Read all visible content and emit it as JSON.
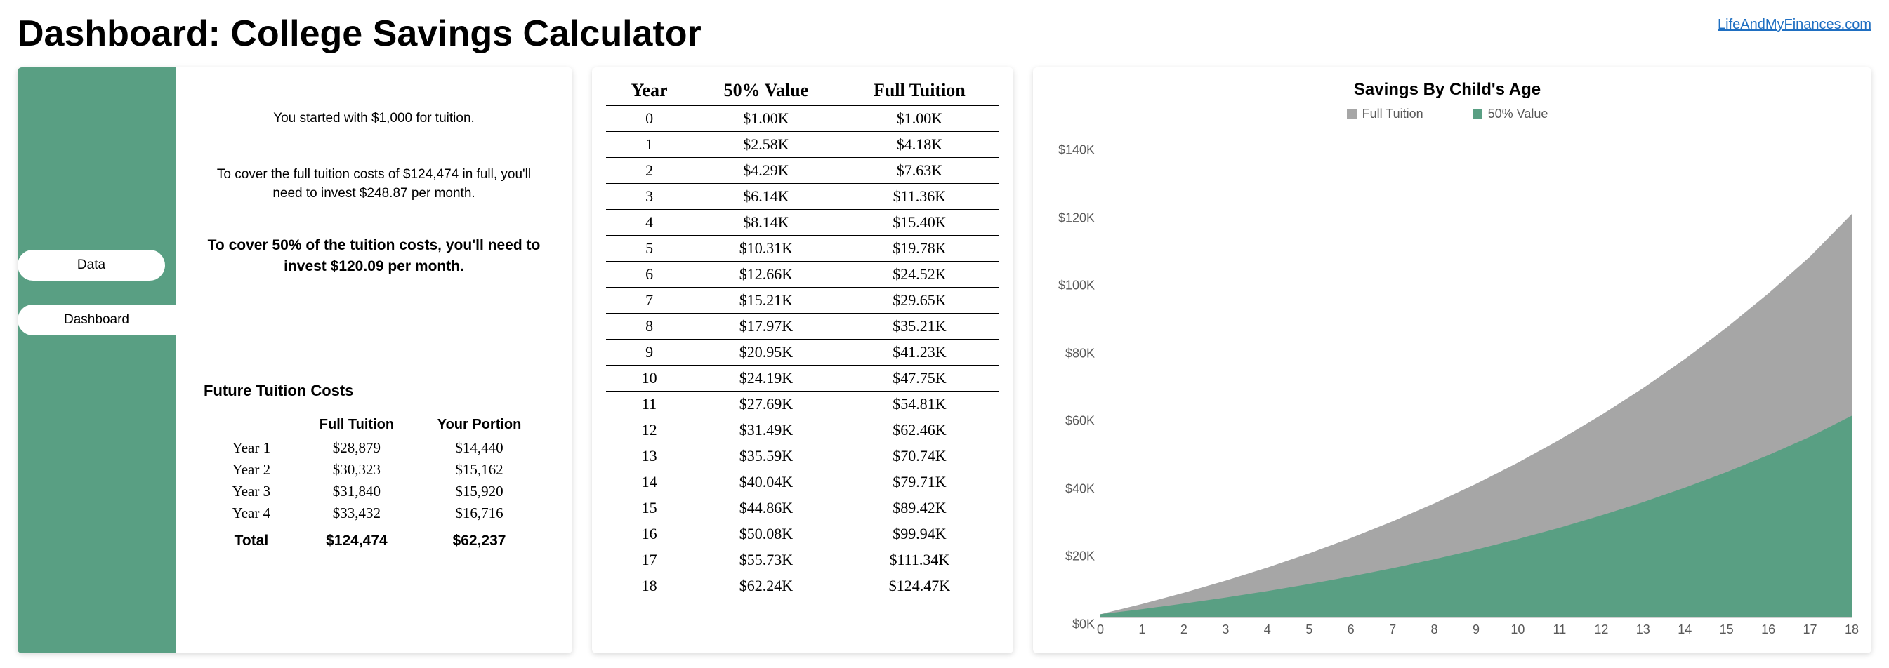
{
  "header": {
    "title": "Dashboard: College Savings Calculator",
    "site_link": "LifeAndMyFinances.com"
  },
  "sidebar": {
    "accent_color": "#599f83",
    "items": [
      {
        "label": "Data",
        "active": false
      },
      {
        "label": "Dashboard",
        "active": true
      }
    ]
  },
  "summary": {
    "line1": "You started with $1,000 for tuition.",
    "line2": "To cover the full tuition costs of $124,474 in full, you'll need to invest $248.87 per month.",
    "bold": "To cover 50% of the tuition costs, you'll need to invest $120.09 per month."
  },
  "future": {
    "title": "Future Tuition Costs",
    "columns": [
      "",
      "Full Tuition",
      "Your Portion"
    ],
    "rows": [
      [
        "Year 1",
        "$28,879",
        "$14,440"
      ],
      [
        "Year 2",
        "$30,323",
        "$15,162"
      ],
      [
        "Year 3",
        "$31,840",
        "$15,920"
      ],
      [
        "Year 4",
        "$33,432",
        "$16,716"
      ]
    ],
    "total": [
      "Total",
      "$124,474",
      "$62,237"
    ]
  },
  "year_table": {
    "columns": [
      "Year",
      "50% Value",
      "Full Tuition"
    ],
    "rows": [
      [
        "0",
        "$1.00K",
        "$1.00K"
      ],
      [
        "1",
        "$2.58K",
        "$4.18K"
      ],
      [
        "2",
        "$4.29K",
        "$7.63K"
      ],
      [
        "3",
        "$6.14K",
        "$11.36K"
      ],
      [
        "4",
        "$8.14K",
        "$15.40K"
      ],
      [
        "5",
        "$10.31K",
        "$19.78K"
      ],
      [
        "6",
        "$12.66K",
        "$24.52K"
      ],
      [
        "7",
        "$15.21K",
        "$29.65K"
      ],
      [
        "8",
        "$17.97K",
        "$35.21K"
      ],
      [
        "9",
        "$20.95K",
        "$41.23K"
      ],
      [
        "10",
        "$24.19K",
        "$47.75K"
      ],
      [
        "11",
        "$27.69K",
        "$54.81K"
      ],
      [
        "12",
        "$31.49K",
        "$62.46K"
      ],
      [
        "13",
        "$35.59K",
        "$70.74K"
      ],
      [
        "14",
        "$40.04K",
        "$79.71K"
      ],
      [
        "15",
        "$44.86K",
        "$89.42K"
      ],
      [
        "16",
        "$50.08K",
        "$99.94K"
      ],
      [
        "17",
        "$55.73K",
        "$111.34K"
      ],
      [
        "18",
        "$62.24K",
        "$124.47K"
      ]
    ]
  },
  "chart": {
    "type": "area",
    "title": "Savings By Child's Age",
    "legend": [
      {
        "label": "Full Tuition",
        "color": "#a6a6a6"
      },
      {
        "label": "50% Value",
        "color": "#599f83"
      }
    ],
    "x": {
      "min": 0,
      "max": 18,
      "step": 1,
      "ticks": [
        0,
        1,
        2,
        3,
        4,
        5,
        6,
        7,
        8,
        9,
        10,
        11,
        12,
        13,
        14,
        15,
        16,
        17,
        18
      ]
    },
    "y": {
      "min": 0,
      "max": 150,
      "step": 20,
      "ticks": [
        0,
        20,
        40,
        60,
        80,
        100,
        120,
        140
      ],
      "tick_labels": [
        "$0K",
        "$20K",
        "$40K",
        "$60K",
        "$80K",
        "$100K",
        "$120K",
        "$140K"
      ]
    },
    "series": [
      {
        "name": "Full Tuition",
        "color": "#a6a6a6",
        "values": [
          1.0,
          4.18,
          7.63,
          11.36,
          15.4,
          19.78,
          24.52,
          29.65,
          35.21,
          41.23,
          47.75,
          54.81,
          62.46,
          70.74,
          79.71,
          89.42,
          99.94,
          111.34,
          124.47
        ]
      },
      {
        "name": "50% Value",
        "color": "#599f83",
        "values": [
          1.0,
          2.58,
          4.29,
          6.14,
          8.14,
          10.31,
          12.66,
          15.21,
          17.97,
          20.95,
          24.19,
          27.69,
          31.49,
          35.59,
          40.04,
          44.86,
          50.08,
          55.73,
          62.24
        ]
      }
    ],
    "background_color": "#ffffff",
    "axis_font_color": "#595959",
    "axis_font_size": 18,
    "title_font_size": 24
  }
}
